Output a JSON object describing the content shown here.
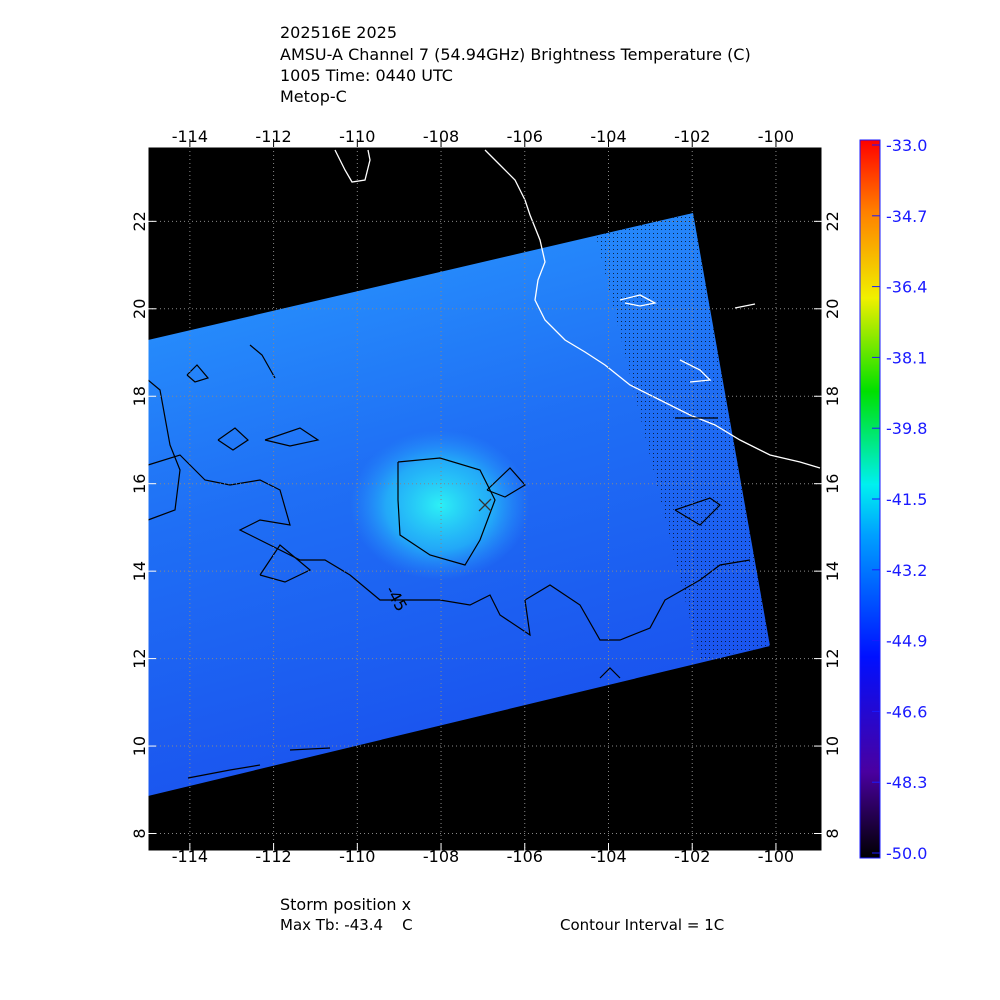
{
  "header": {
    "lines": [
      "202516E 2025",
      "AMSU-A Channel 7 (54.94GHz) Brightness Temperature (C)",
      "1005 Time: 0440 UTC",
      "Metop-C"
    ]
  },
  "map": {
    "xlim": [
      -115.0,
      -98.9
    ],
    "ylim": [
      7.6,
      23.7
    ],
    "xticks": [
      -114,
      -112,
      -110,
      -108,
      -106,
      -104,
      -102,
      -100
    ],
    "yticks": [
      8,
      10,
      12,
      14,
      16,
      18,
      20,
      22
    ],
    "grid": true,
    "contour_label": "-45"
  },
  "colorbar": {
    "lim": [
      -50,
      -33
    ],
    "ticks": [
      {
        "value": -33,
        "label": "-33.0"
      },
      {
        "value": -34.7,
        "label": "-34.7"
      },
      {
        "value": -36.4,
        "label": "-36.4"
      },
      {
        "value": -38.1,
        "label": "-38.1"
      },
      {
        "value": -39.8,
        "label": "-39.8"
      },
      {
        "value": -41.5,
        "label": "-41.5"
      },
      {
        "value": -43.2,
        "label": "-43.2"
      },
      {
        "value": -44.9,
        "label": "-44.9"
      },
      {
        "value": -46.6,
        "label": "-46.6"
      },
      {
        "value": -48.3,
        "label": "-48.3"
      },
      {
        "value": -50,
        "label": "-50.0"
      }
    ]
  },
  "footer": {
    "storm": "Storm position x",
    "max_tb": "Max Tb: -43.4    C",
    "interval": "Contour Interval = 1C"
  }
}
